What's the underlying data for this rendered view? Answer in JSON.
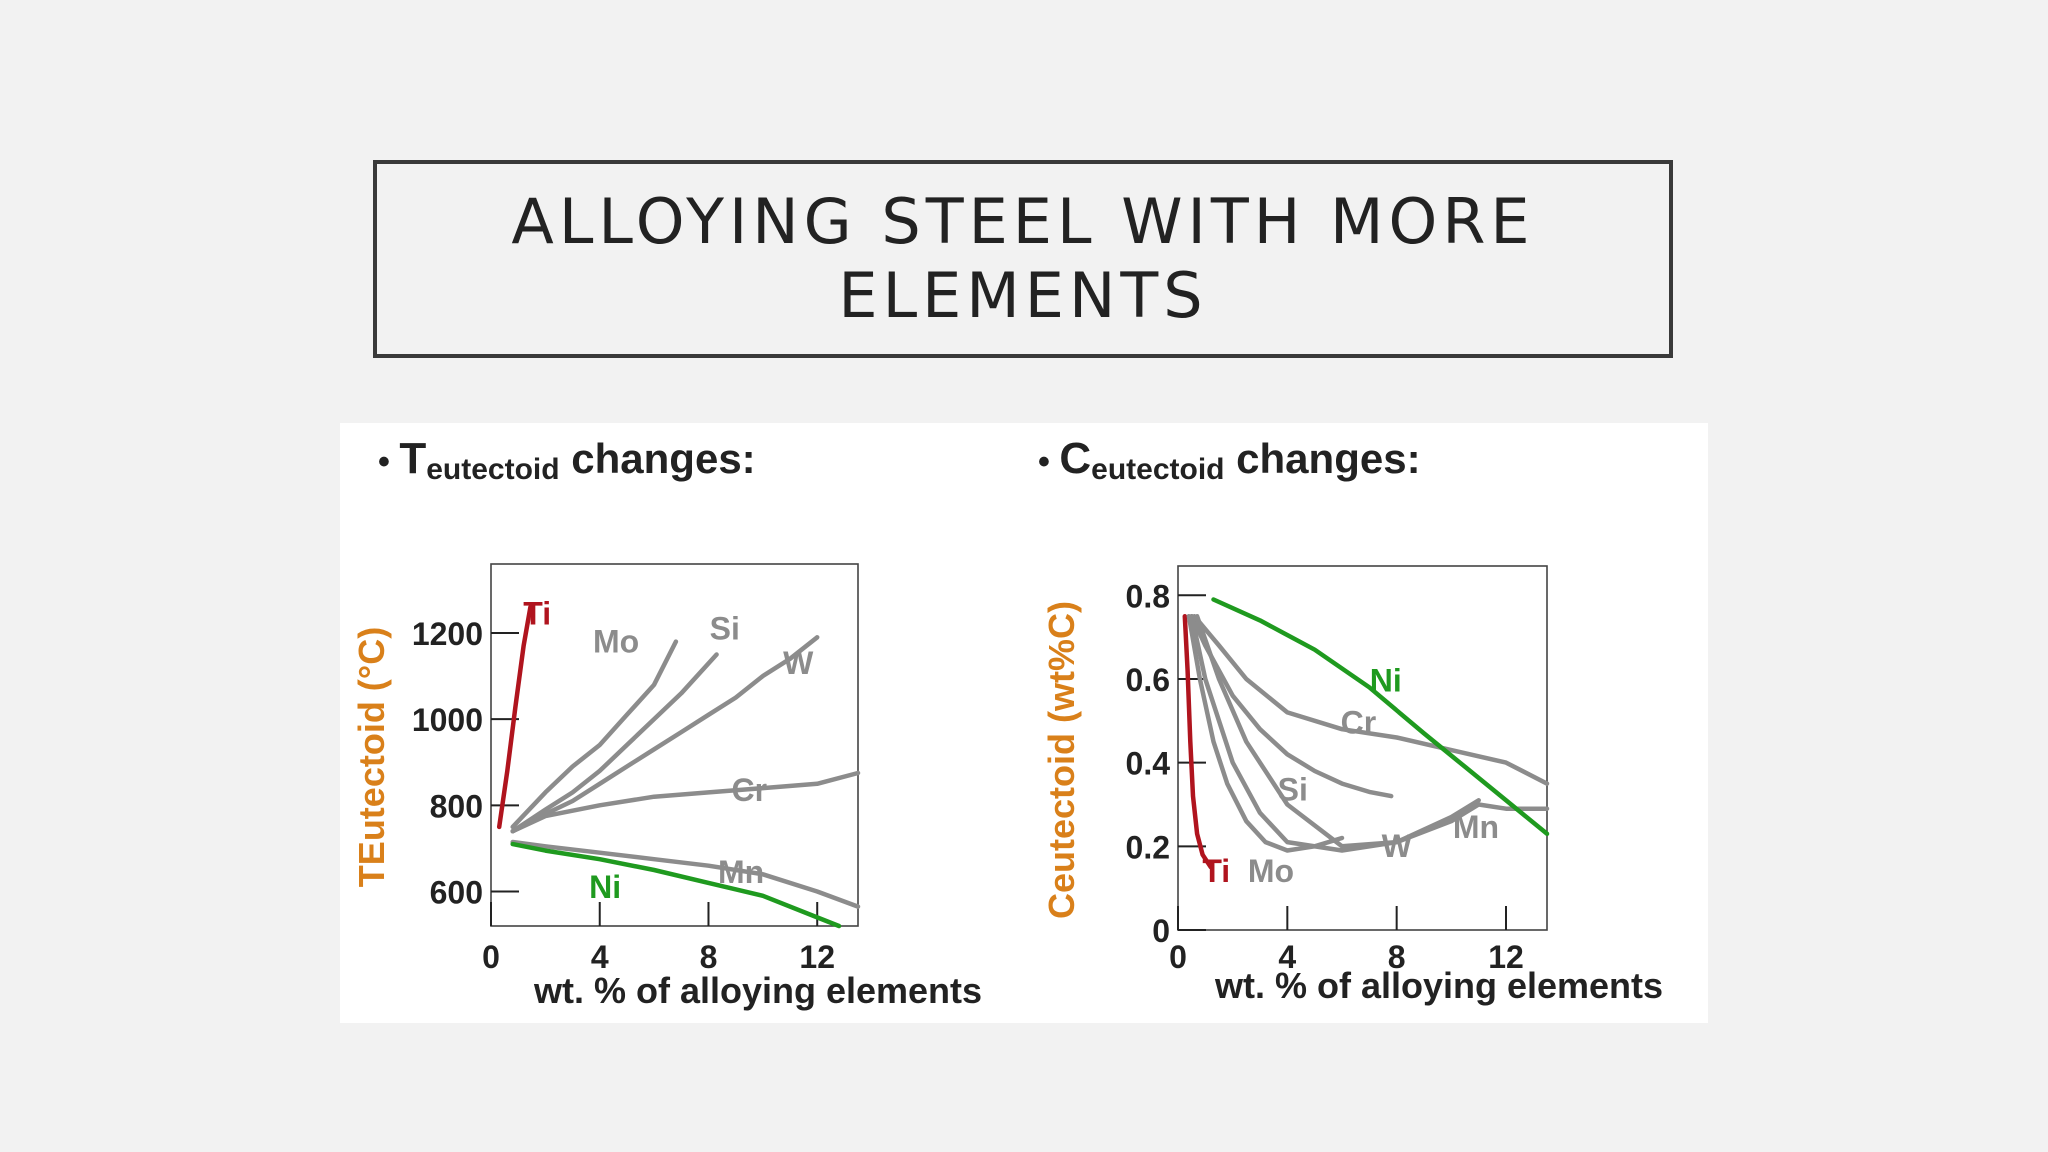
{
  "slide": {
    "title": "ALLOYING STEEL WITH MORE ELEMENTS"
  },
  "colors": {
    "axis_label": "#d9801a",
    "curve_gray": "#8c8c8c",
    "ti": "#b0141e",
    "ni": "#1f9a1f",
    "text": "#222222"
  },
  "chart_data": [
    {
      "type": "line",
      "heading": {
        "bullet": "•",
        "main": "T",
        "sub": "eutectoid",
        "suffix": " changes:"
      },
      "ylabel": "TEutectoid (°C)",
      "xlabel": "wt. % of alloying elements",
      "xlim": [
        0,
        13.5
      ],
      "ylim": [
        520,
        1360
      ],
      "xticks": [
        0,
        4,
        8,
        12
      ],
      "yticks": [
        600,
        800,
        1000,
        1200
      ],
      "grid": false,
      "series": [
        {
          "name": "Ti",
          "color": "#b0141e",
          "label_at": [
            1.7,
            1220
          ],
          "x": [
            0.3,
            0.6,
            0.9,
            1.2,
            1.45
          ],
          "y": [
            750,
            880,
            1030,
            1170,
            1260
          ]
        },
        {
          "name": "Mo",
          "color": "#8c8c8c",
          "label_at": [
            4.6,
            1155
          ],
          "x": [
            0.8,
            2,
            3,
            4,
            5,
            6,
            6.8
          ],
          "y": [
            750,
            830,
            890,
            940,
            1010,
            1080,
            1180
          ]
        },
        {
          "name": "Si",
          "color": "#8c8c8c",
          "label_at": [
            8.6,
            1185
          ],
          "x": [
            0.8,
            2,
            3,
            4,
            5,
            6,
            7,
            8.3
          ],
          "y": [
            740,
            790,
            830,
            880,
            940,
            1000,
            1060,
            1150
          ]
        },
        {
          "name": "W",
          "color": "#8c8c8c",
          "label_at": [
            11.3,
            1105
          ],
          "x": [
            0.8,
            2,
            3,
            4,
            5,
            6,
            7,
            8,
            9,
            10,
            11,
            12.0
          ],
          "y": [
            740,
            780,
            810,
            850,
            890,
            930,
            970,
            1010,
            1050,
            1100,
            1140,
            1190
          ]
        },
        {
          "name": "Cr",
          "color": "#8c8c8c",
          "label_at": [
            9.5,
            810
          ],
          "x": [
            0.8,
            2,
            4,
            6,
            8,
            10,
            12,
            13.5
          ],
          "y": [
            740,
            775,
            800,
            820,
            830,
            840,
            850,
            875
          ]
        },
        {
          "name": "Mn",
          "color": "#8c8c8c",
          "label_at": [
            9.2,
            620
          ],
          "x": [
            0.8,
            2,
            4,
            6,
            8,
            10,
            12,
            13.5
          ],
          "y": [
            715,
            705,
            690,
            675,
            660,
            640,
            600,
            565
          ]
        },
        {
          "name": "Ni",
          "color": "#1f9a1f",
          "label_at": [
            4.2,
            585
          ],
          "x": [
            0.8,
            2,
            4,
            6,
            8,
            10,
            12,
            12.8
          ],
          "y": [
            710,
            695,
            675,
            650,
            620,
            590,
            540,
            520
          ]
        }
      ]
    },
    {
      "type": "line",
      "heading": {
        "bullet": "•",
        "main": "C",
        "sub": "eutectoid",
        "suffix": " changes:"
      },
      "ylabel": "Ceutectoid (wt%C)",
      "xlabel": "wt. % of alloying elements",
      "xlim": [
        0,
        13.5
      ],
      "ylim": [
        0,
        0.87
      ],
      "xticks": [
        0,
        4,
        8,
        12
      ],
      "yticks": [
        0,
        0.2,
        0.4,
        0.6,
        0.8
      ],
      "ytick_labels": [
        "0",
        "0.2",
        "0.4",
        "0.6",
        "0.8"
      ],
      "grid": false,
      "series": [
        {
          "name": "Ti",
          "color": "#b0141e",
          "label_at": [
            1.4,
            0.115
          ],
          "x": [
            0.25,
            0.35,
            0.45,
            0.55,
            0.7,
            0.9,
            1.2
          ],
          "y": [
            0.75,
            0.62,
            0.45,
            0.32,
            0.23,
            0.18,
            0.15
          ]
        },
        {
          "name": "Mo",
          "color": "#8c8c8c",
          "label_at": [
            3.4,
            0.115
          ],
          "x": [
            0.4,
            0.8,
            1.3,
            1.8,
            2.5,
            3.2,
            4,
            5,
            6
          ],
          "y": [
            0.75,
            0.6,
            0.45,
            0.35,
            0.26,
            0.21,
            0.19,
            0.2,
            0.22
          ]
        },
        {
          "name": "Si",
          "color": "#8c8c8c",
          "label_at": [
            4.2,
            0.31
          ],
          "x": [
            0.5,
            1,
            2,
            3,
            4,
            5,
            6,
            7,
            7.8
          ],
          "y": [
            0.75,
            0.68,
            0.56,
            0.48,
            0.42,
            0.38,
            0.35,
            0.33,
            0.32
          ]
        },
        {
          "name": "W",
          "color": "#8c8c8c",
          "label_at": [
            8.0,
            0.175
          ],
          "x": [
            0.5,
            1,
            2,
            3,
            4,
            6,
            8,
            10,
            11
          ],
          "y": [
            0.75,
            0.6,
            0.4,
            0.28,
            0.21,
            0.19,
            0.21,
            0.27,
            0.31
          ]
        },
        {
          "name": "Mn",
          "color": "#8c8c8c",
          "label_at": [
            10.9,
            0.22
          ],
          "x": [
            0.7,
            1.5,
            2.5,
            4,
            6,
            8,
            10,
            11,
            12,
            13.5
          ],
          "y": [
            0.75,
            0.6,
            0.45,
            0.3,
            0.2,
            0.21,
            0.26,
            0.3,
            0.29,
            0.29
          ]
        },
        {
          "name": "Cr",
          "color": "#8c8c8c",
          "label_at": [
            6.6,
            0.47
          ],
          "x": [
            0.6,
            1.5,
            2.5,
            4,
            6,
            8,
            10,
            12,
            13.5
          ],
          "y": [
            0.75,
            0.68,
            0.6,
            0.52,
            0.48,
            0.46,
            0.43,
            0.4,
            0.35
          ]
        },
        {
          "name": "Ni",
          "color": "#1f9a1f",
          "label_at": [
            7.6,
            0.57
          ],
          "x": [
            1.3,
            3,
            5,
            7,
            9,
            10.5,
            12,
            13.5
          ],
          "y": [
            0.79,
            0.74,
            0.67,
            0.58,
            0.47,
            0.39,
            0.31,
            0.23
          ]
        }
      ]
    }
  ]
}
